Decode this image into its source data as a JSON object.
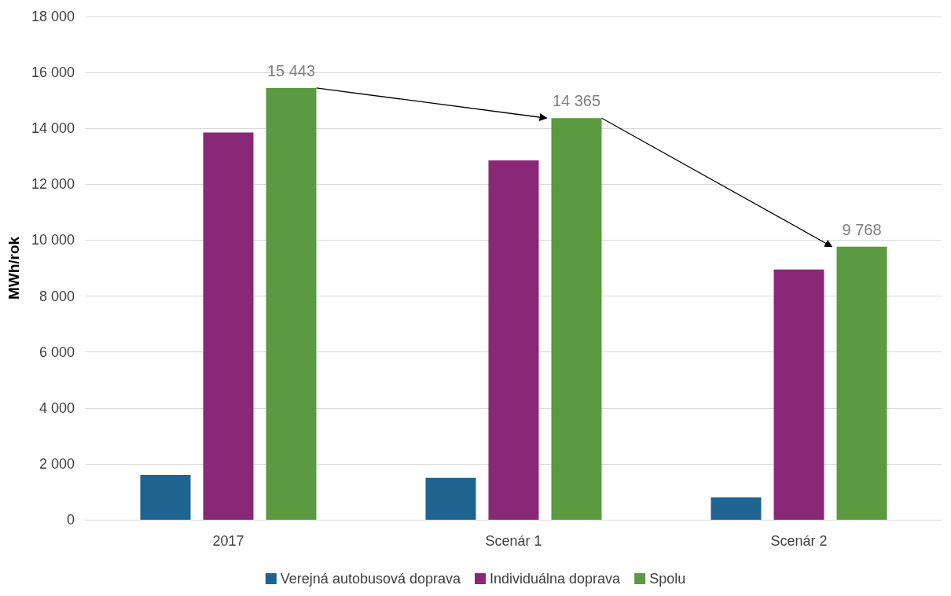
{
  "chart_data": {
    "type": "bar",
    "ylabel": "MWh/rok",
    "categories": [
      "2017",
      "Scenár 1",
      "Scenár 2"
    ],
    "series": [
      {
        "name": "Verejná autobusová doprava",
        "color": "#1f6391",
        "values": [
          1600,
          1500,
          800
        ]
      },
      {
        "name": "Individuálna doprava",
        "color": "#8a2878",
        "values": [
          13850,
          12850,
          8950
        ]
      },
      {
        "name": "Spolu",
        "color": "#5b9a41",
        "values": [
          15443,
          14365,
          9768
        ],
        "value_labels": [
          "15 443",
          "14 365",
          "9 768"
        ]
      }
    ],
    "ylim": [
      0,
      18000
    ],
    "yticks": [
      {
        "value": 0,
        "label": "0"
      },
      {
        "value": 2000,
        "label": "2 000"
      },
      {
        "value": 4000,
        "label": "4 000"
      },
      {
        "value": 6000,
        "label": "6 000"
      },
      {
        "value": 8000,
        "label": "8 000"
      },
      {
        "value": 10000,
        "label": "10 000"
      },
      {
        "value": 12000,
        "label": "12 000"
      },
      {
        "value": 14000,
        "label": "14 000"
      },
      {
        "value": 16000,
        "label": "16 000"
      },
      {
        "value": 18000,
        "label": "18 000"
      }
    ],
    "grid": "y",
    "legend": "bottom"
  }
}
